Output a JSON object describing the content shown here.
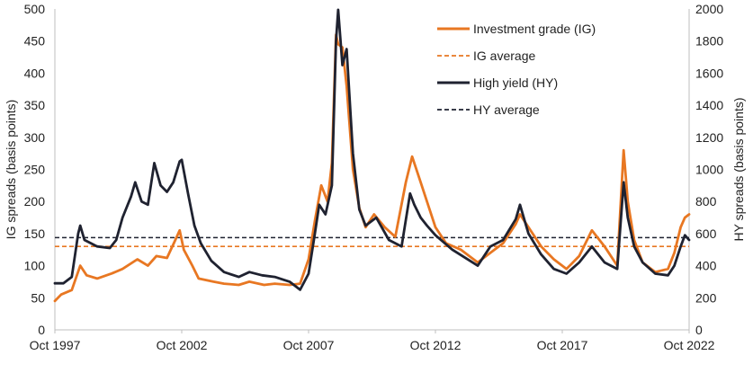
{
  "chart_data": {
    "type": "line",
    "title": "",
    "x_axis": {
      "type": "date",
      "range": [
        "1997-10",
        "2022-10"
      ],
      "tick_labels": [
        "Oct 1997",
        "Oct 2002",
        "Oct 2007",
        "Oct 2012",
        "Oct 2017",
        "Oct 2022"
      ],
      "ticks": [
        "1997-10",
        "2002-10",
        "2007-10",
        "2012-10",
        "2017-10",
        "2022-10"
      ]
    },
    "y_left": {
      "label": "IG spreads (basis points)",
      "range": [
        0,
        500
      ],
      "ticks": [
        0,
        50,
        100,
        150,
        200,
        250,
        300,
        350,
        400,
        450,
        500
      ]
    },
    "y_right": {
      "label": "HY spreads (basis points)",
      "range": [
        0,
        2000
      ],
      "ticks": [
        0,
        200,
        400,
        600,
        800,
        1000,
        1200,
        1400,
        1600,
        1800,
        2000
      ]
    },
    "grid": false,
    "legend": {
      "placement": "top-right",
      "entries": [
        {
          "label": "Investment grade (IG)",
          "style": "solid",
          "color": "#E87722"
        },
        {
          "label": "IG average",
          "style": "dashed",
          "color": "#E87722"
        },
        {
          "label": "High yield (HY)",
          "style": "solid",
          "color": "#1F2230"
        },
        {
          "label": "HY average",
          "style": "dashed",
          "color": "#1F2230"
        }
      ]
    },
    "series": [
      {
        "name": "Investment grade (IG)",
        "axis": "left",
        "color": "#E87722",
        "points": [
          [
            "1997-10",
            45
          ],
          [
            "1998-01",
            55
          ],
          [
            "1998-06",
            62
          ],
          [
            "1998-10",
            100
          ],
          [
            "1999-01",
            85
          ],
          [
            "1999-06",
            80
          ],
          [
            "2000-01",
            88
          ],
          [
            "2000-06",
            95
          ],
          [
            "2001-01",
            110
          ],
          [
            "2001-06",
            100
          ],
          [
            "2001-10",
            115
          ],
          [
            "2002-03",
            112
          ],
          [
            "2002-07",
            140
          ],
          [
            "2002-09",
            155
          ],
          [
            "2002-11",
            125
          ],
          [
            "2003-03",
            100
          ],
          [
            "2003-06",
            80
          ],
          [
            "2004-01",
            75
          ],
          [
            "2004-06",
            72
          ],
          [
            "2005-01",
            70
          ],
          [
            "2005-06",
            75
          ],
          [
            "2006-01",
            70
          ],
          [
            "2006-06",
            72
          ],
          [
            "2007-01",
            70
          ],
          [
            "2007-06",
            72
          ],
          [
            "2007-10",
            110
          ],
          [
            "2008-01",
            170
          ],
          [
            "2008-04",
            225
          ],
          [
            "2008-07",
            200
          ],
          [
            "2008-09",
            260
          ],
          [
            "2008-11",
            460
          ],
          [
            "2008-12",
            445
          ],
          [
            "2009-02",
            440
          ],
          [
            "2009-04",
            380
          ],
          [
            "2009-07",
            250
          ],
          [
            "2009-10",
            190
          ],
          [
            "2010-01",
            160
          ],
          [
            "2010-05",
            180
          ],
          [
            "2010-10",
            160
          ],
          [
            "2011-03",
            145
          ],
          [
            "2011-08",
            230
          ],
          [
            "2011-11",
            270
          ],
          [
            "2012-03",
            230
          ],
          [
            "2012-06",
            200
          ],
          [
            "2012-10",
            160
          ],
          [
            "2013-03",
            135
          ],
          [
            "2013-10",
            125
          ],
          [
            "2014-06",
            105
          ],
          [
            "2014-12",
            120
          ],
          [
            "2015-06",
            135
          ],
          [
            "2015-12",
            165
          ],
          [
            "2016-02",
            180
          ],
          [
            "2016-06",
            160
          ],
          [
            "2016-12",
            130
          ],
          [
            "2017-06",
            110
          ],
          [
            "2017-12",
            95
          ],
          [
            "2018-06",
            115
          ],
          [
            "2018-12",
            155
          ],
          [
            "2019-06",
            130
          ],
          [
            "2019-12",
            100
          ],
          [
            "2020-03",
            280
          ],
          [
            "2020-05",
            200
          ],
          [
            "2020-08",
            140
          ],
          [
            "2020-12",
            105
          ],
          [
            "2021-06",
            90
          ],
          [
            "2021-12",
            95
          ],
          [
            "2022-03",
            120
          ],
          [
            "2022-06",
            160
          ],
          [
            "2022-08",
            175
          ],
          [
            "2022-10",
            180
          ]
        ]
      },
      {
        "name": "High yield (HY)",
        "axis": "right",
        "color": "#1F2230",
        "points": [
          [
            "1997-10",
            290
          ],
          [
            "1998-02",
            290
          ],
          [
            "1998-06",
            330
          ],
          [
            "1998-09",
            600
          ],
          [
            "1998-10",
            650
          ],
          [
            "1998-12",
            560
          ],
          [
            "1999-03",
            540
          ],
          [
            "1999-06",
            520
          ],
          [
            "1999-12",
            510
          ],
          [
            "2000-03",
            560
          ],
          [
            "2000-06",
            700
          ],
          [
            "2000-10",
            830
          ],
          [
            "2000-12",
            920
          ],
          [
            "2001-03",
            800
          ],
          [
            "2001-06",
            780
          ],
          [
            "2001-09",
            1040
          ],
          [
            "2001-12",
            900
          ],
          [
            "2002-03",
            860
          ],
          [
            "2002-06",
            920
          ],
          [
            "2002-09",
            1050
          ],
          [
            "2002-10",
            1060
          ],
          [
            "2003-01",
            850
          ],
          [
            "2003-04",
            650
          ],
          [
            "2003-07",
            540
          ],
          [
            "2003-12",
            430
          ],
          [
            "2004-06",
            360
          ],
          [
            "2005-01",
            330
          ],
          [
            "2005-06",
            360
          ],
          [
            "2005-12",
            340
          ],
          [
            "2006-06",
            330
          ],
          [
            "2007-01",
            300
          ],
          [
            "2007-06",
            250
          ],
          [
            "2007-10",
            350
          ],
          [
            "2008-01",
            600
          ],
          [
            "2008-03",
            780
          ],
          [
            "2008-06",
            720
          ],
          [
            "2008-09",
            900
          ],
          [
            "2008-11",
            1800
          ],
          [
            "2008-12",
            1995
          ],
          [
            "2009-02",
            1650
          ],
          [
            "2009-04",
            1750
          ],
          [
            "2009-07",
            1100
          ],
          [
            "2009-10",
            750
          ],
          [
            "2010-01",
            650
          ],
          [
            "2010-06",
            700
          ],
          [
            "2010-12",
            560
          ],
          [
            "2011-06",
            520
          ],
          [
            "2011-10",
            850
          ],
          [
            "2011-12",
            780
          ],
          [
            "2012-03",
            700
          ],
          [
            "2012-06",
            650
          ],
          [
            "2012-10",
            590
          ],
          [
            "2013-06",
            500
          ],
          [
            "2014-06",
            400
          ],
          [
            "2014-12",
            520
          ],
          [
            "2015-06",
            560
          ],
          [
            "2015-12",
            690
          ],
          [
            "2016-02",
            780
          ],
          [
            "2016-06",
            600
          ],
          [
            "2016-12",
            470
          ],
          [
            "2017-06",
            380
          ],
          [
            "2017-12",
            350
          ],
          [
            "2018-06",
            420
          ],
          [
            "2018-12",
            520
          ],
          [
            "2019-06",
            420
          ],
          [
            "2019-12",
            380
          ],
          [
            "2020-03",
            920
          ],
          [
            "2020-05",
            700
          ],
          [
            "2020-08",
            520
          ],
          [
            "2020-12",
            420
          ],
          [
            "2021-06",
            350
          ],
          [
            "2021-12",
            340
          ],
          [
            "2022-03",
            400
          ],
          [
            "2022-06",
            520
          ],
          [
            "2022-08",
            590
          ],
          [
            "2022-10",
            560
          ]
        ]
      }
    ],
    "reference_lines": [
      {
        "name": "IG average",
        "axis": "left",
        "value": 130,
        "style": "dashed",
        "color": "#E87722"
      },
      {
        "name": "HY average",
        "axis": "right",
        "value": 575,
        "style": "dashed",
        "color": "#1F2230"
      }
    ]
  }
}
